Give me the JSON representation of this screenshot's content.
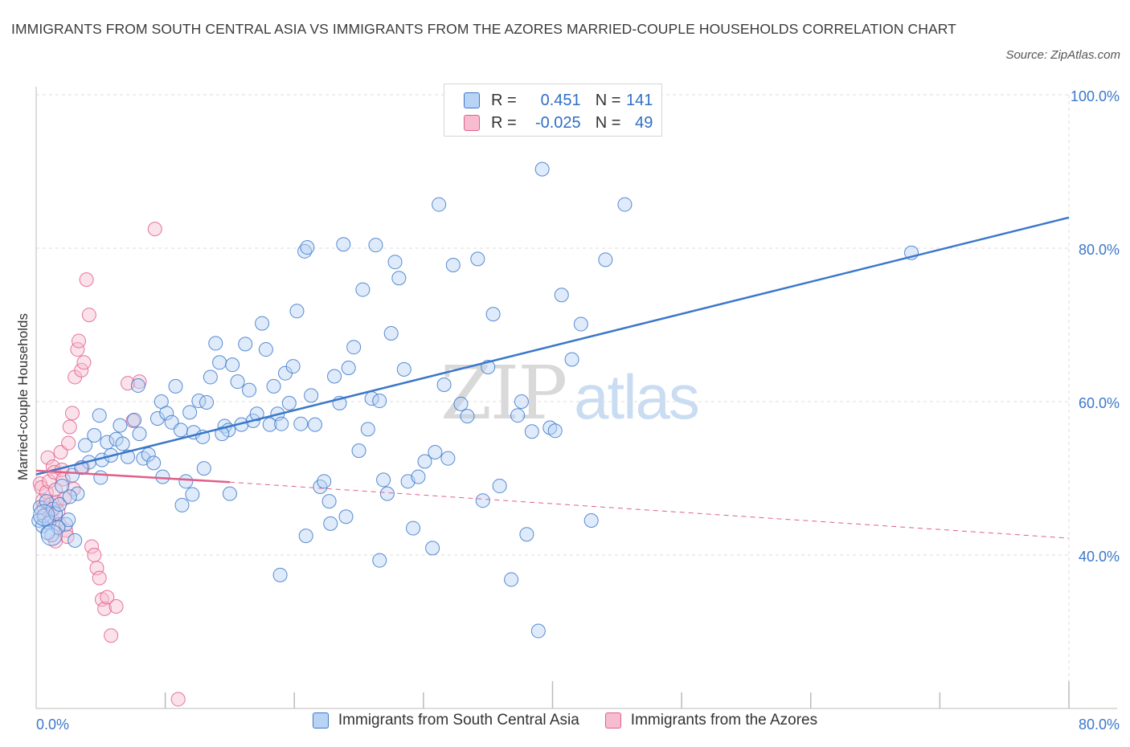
{
  "title": "IMMIGRANTS FROM SOUTH CENTRAL ASIA VS IMMIGRANTS FROM THE AZORES MARRIED-COUPLE HOUSEHOLDS CORRELATION CHART",
  "source": "Source: ZipAtlas.com",
  "watermark": {
    "zip": "ZIP",
    "atlas": "atlas"
  },
  "colors": {
    "blue": "#3b78c9",
    "blue_fill": "#b9d3f5",
    "pink": "#e0608a",
    "pink_fill": "#f7bcd0"
  },
  "legend": {
    "rows": [
      {
        "r_label": "R =",
        "r_value": "0.451",
        "n_label": "N =",
        "n_value": "141"
      },
      {
        "r_label": "R =",
        "r_value": "-0.025",
        "n_label": "N =",
        "n_value": "49"
      }
    ]
  },
  "chart_data": {
    "type": "scatter",
    "title": "Immigrants from South Central Asia vs Immigrants from the Azores Married-couple Households Correlation Chart",
    "ylabel": "Married-couple Households",
    "xlim": [
      0,
      80
    ],
    "ylim": [
      20,
      100
    ],
    "y_ticks": [
      40,
      60,
      80,
      100
    ],
    "y_tick_labels": [
      "40.0%",
      "60.0%",
      "80.0%",
      "100.0%"
    ],
    "x_tick_labels": {
      "min": "0.0%",
      "max": "80.0%"
    },
    "grid": true,
    "series": [
      {
        "name": "Immigrants from South Central Asia",
        "R": 0.451,
        "N": 141,
        "trend": {
          "x0": 0.0,
          "y0": 50.5,
          "x1": 80.0,
          "y1": 84.0,
          "style": "solid"
        },
        "points": [
          [
            0.2,
            44.5
          ],
          [
            0.3,
            46.2
          ],
          [
            0.5,
            43.8
          ],
          [
            0.6,
            45.1
          ],
          [
            0.8,
            47.0
          ],
          [
            1.0,
            44.2
          ],
          [
            1.2,
            42.6
          ],
          [
            1.3,
            46.0
          ],
          [
            1.5,
            45.4
          ],
          [
            1.8,
            46.6
          ],
          [
            2.0,
            49.0
          ],
          [
            2.3,
            44.0
          ],
          [
            2.5,
            44.6
          ],
          [
            2.8,
            50.4
          ],
          [
            3.0,
            41.9
          ],
          [
            3.2,
            48.0
          ],
          [
            3.8,
            54.3
          ],
          [
            4.1,
            52.1
          ],
          [
            4.5,
            55.6
          ],
          [
            4.9,
            58.2
          ],
          [
            5.1,
            52.4
          ],
          [
            5.5,
            54.7
          ],
          [
            5.8,
            53.0
          ],
          [
            6.2,
            55.1
          ],
          [
            6.7,
            54.5
          ],
          [
            7.1,
            52.8
          ],
          [
            7.6,
            57.6
          ],
          [
            7.9,
            62.1
          ],
          [
            8.3,
            52.6
          ],
          [
            8.7,
            53.1
          ],
          [
            9.1,
            52.0
          ],
          [
            9.4,
            57.8
          ],
          [
            9.7,
            60.0
          ],
          [
            10.1,
            58.5
          ],
          [
            10.5,
            57.3
          ],
          [
            10.8,
            62.0
          ],
          [
            11.2,
            56.3
          ],
          [
            11.6,
            49.6
          ],
          [
            11.9,
            58.6
          ],
          [
            12.2,
            56.0
          ],
          [
            12.6,
            60.1
          ],
          [
            12.9,
            55.4
          ],
          [
            13.2,
            59.9
          ],
          [
            13.5,
            63.2
          ],
          [
            13.9,
            67.6
          ],
          [
            14.2,
            65.1
          ],
          [
            14.6,
            56.8
          ],
          [
            14.9,
            56.3
          ],
          [
            15.2,
            64.8
          ],
          [
            15.6,
            62.6
          ],
          [
            15.9,
            57.0
          ],
          [
            16.2,
            67.5
          ],
          [
            16.5,
            61.5
          ],
          [
            16.8,
            57.5
          ],
          [
            17.1,
            58.4
          ],
          [
            17.5,
            70.2
          ],
          [
            17.8,
            66.8
          ],
          [
            18.1,
            57.0
          ],
          [
            18.4,
            62.0
          ],
          [
            18.7,
            58.4
          ],
          [
            19.0,
            57.1
          ],
          [
            19.3,
            63.7
          ],
          [
            19.6,
            59.8
          ],
          [
            19.9,
            64.6
          ],
          [
            20.2,
            71.8
          ],
          [
            20.5,
            57.1
          ],
          [
            20.8,
            79.6
          ],
          [
            21.0,
            80.1
          ],
          [
            21.3,
            60.8
          ],
          [
            21.6,
            57.0
          ],
          [
            22.0,
            48.9
          ],
          [
            22.3,
            49.6
          ],
          [
            22.7,
            47.0
          ],
          [
            23.1,
            63.3
          ],
          [
            23.5,
            59.8
          ],
          [
            23.8,
            80.5
          ],
          [
            24.2,
            64.4
          ],
          [
            24.6,
            67.1
          ],
          [
            25.0,
            53.6
          ],
          [
            25.3,
            74.6
          ],
          [
            25.7,
            56.4
          ],
          [
            26.0,
            60.4
          ],
          [
            26.3,
            80.4
          ],
          [
            26.6,
            60.1
          ],
          [
            26.9,
            49.8
          ],
          [
            27.2,
            48.0
          ],
          [
            27.5,
            68.9
          ],
          [
            27.8,
            78.2
          ],
          [
            28.1,
            76.1
          ],
          [
            28.5,
            64.2
          ],
          [
            28.8,
            49.6
          ],
          [
            29.2,
            43.5
          ],
          [
            30.1,
            52.2
          ],
          [
            30.7,
            40.9
          ],
          [
            31.2,
            85.7
          ],
          [
            31.6,
            62.2
          ],
          [
            31.9,
            52.6
          ],
          [
            32.3,
            77.8
          ],
          [
            32.9,
            59.7
          ],
          [
            33.4,
            58.1
          ],
          [
            34.2,
            78.6
          ],
          [
            35.0,
            64.5
          ],
          [
            35.4,
            71.4
          ],
          [
            35.9,
            49.0
          ],
          [
            36.8,
            36.8
          ],
          [
            37.3,
            58.2
          ],
          [
            37.6,
            60.0
          ],
          [
            38.0,
            42.7
          ],
          [
            38.4,
            56.1
          ],
          [
            38.9,
            30.1
          ],
          [
            39.2,
            90.3
          ],
          [
            39.8,
            56.6
          ],
          [
            40.2,
            56.2
          ],
          [
            40.7,
            73.9
          ],
          [
            41.5,
            65.5
          ],
          [
            42.2,
            70.1
          ],
          [
            43.0,
            44.5
          ],
          [
            44.1,
            78.5
          ],
          [
            45.6,
            85.7
          ],
          [
            67.8,
            79.4
          ],
          [
            15.0,
            48.0
          ],
          [
            14.4,
            55.8
          ],
          [
            9.8,
            50.2
          ],
          [
            11.3,
            46.5
          ],
          [
            13.0,
            51.3
          ],
          [
            12.1,
            47.9
          ],
          [
            8.0,
            55.8
          ],
          [
            6.5,
            56.9
          ],
          [
            5.0,
            50.1
          ],
          [
            3.5,
            51.4
          ],
          [
            2.6,
            47.6
          ],
          [
            1.7,
            43.6
          ],
          [
            0.9,
            42.9
          ],
          [
            18.9,
            37.4
          ],
          [
            20.9,
            42.5
          ],
          [
            22.8,
            44.1
          ],
          [
            24.0,
            45.0
          ],
          [
            26.6,
            39.3
          ],
          [
            30.9,
            53.4
          ],
          [
            29.6,
            50.2
          ],
          [
            34.6,
            47.1
          ]
        ]
      },
      {
        "name": "Immigrants from the Azores",
        "R": -0.025,
        "N": 49,
        "trend": {
          "x0": 0.0,
          "y0": 51.0,
          "x1": 15.0,
          "y1": 49.5,
          "dash_x1": 80.0,
          "dash_y1": 42.2,
          "style": "solid-then-dashed"
        },
        "points": [
          [
            0.3,
            49.3
          ],
          [
            0.4,
            48.8
          ],
          [
            0.5,
            47.1
          ],
          [
            0.6,
            46.2
          ],
          [
            0.7,
            45.3
          ],
          [
            0.8,
            48.2
          ],
          [
            0.9,
            52.7
          ],
          [
            1.0,
            49.6
          ],
          [
            1.1,
            46.6
          ],
          [
            1.2,
            44.8
          ],
          [
            1.3,
            51.5
          ],
          [
            1.4,
            50.8
          ],
          [
            1.5,
            48.5
          ],
          [
            1.6,
            46.9
          ],
          [
            1.7,
            45.7
          ],
          [
            1.8,
            44.0
          ],
          [
            1.9,
            53.4
          ],
          [
            2.0,
            51.1
          ],
          [
            2.1,
            49.9
          ],
          [
            2.2,
            47.4
          ],
          [
            2.3,
            43.2
          ],
          [
            2.4,
            42.4
          ],
          [
            2.5,
            54.6
          ],
          [
            2.6,
            56.7
          ],
          [
            2.8,
            58.5
          ],
          [
            3.0,
            63.2
          ],
          [
            3.2,
            66.8
          ],
          [
            3.3,
            67.9
          ],
          [
            3.5,
            64.1
          ],
          [
            3.7,
            65.1
          ],
          [
            3.9,
            75.9
          ],
          [
            4.1,
            71.3
          ],
          [
            4.3,
            41.1
          ],
          [
            4.5,
            40.0
          ],
          [
            4.7,
            38.3
          ],
          [
            4.9,
            37.0
          ],
          [
            5.1,
            34.2
          ],
          [
            5.3,
            33.0
          ],
          [
            5.5,
            34.5
          ],
          [
            5.8,
            29.5
          ],
          [
            6.2,
            33.3
          ],
          [
            7.1,
            62.4
          ],
          [
            7.5,
            57.5
          ],
          [
            8.0,
            62.6
          ],
          [
            9.2,
            82.5
          ],
          [
            11.0,
            21.2
          ],
          [
            3.6,
            51.4
          ],
          [
            2.9,
            48.6
          ],
          [
            1.5,
            41.8
          ]
        ]
      }
    ]
  }
}
